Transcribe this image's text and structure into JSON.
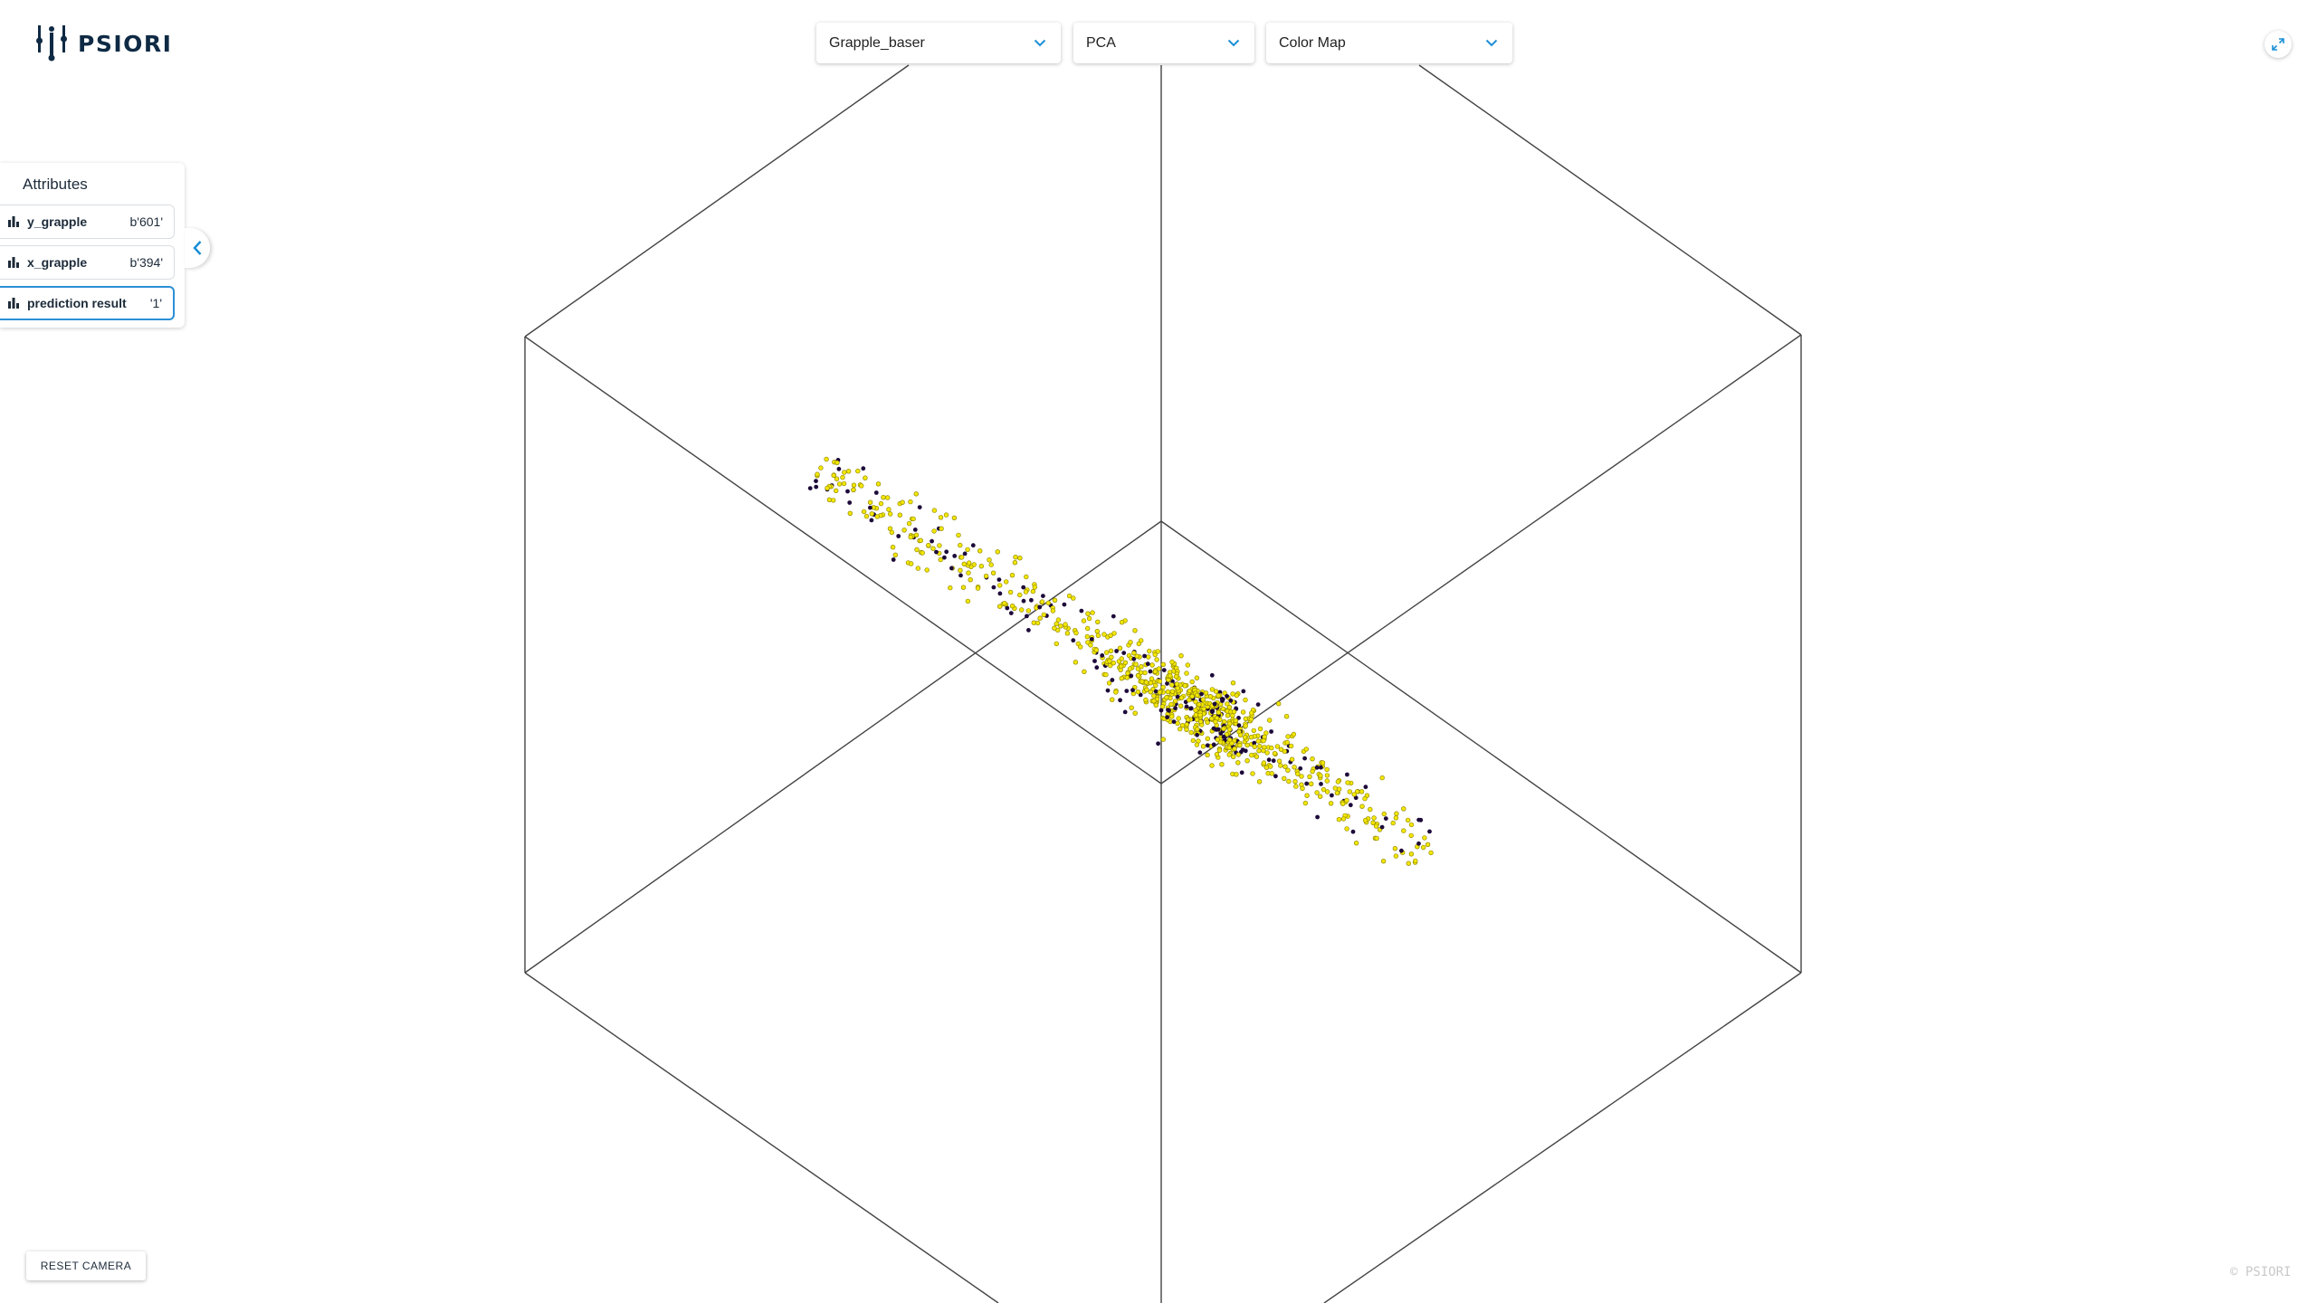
{
  "app": {
    "logo_text": "PSIORI"
  },
  "toolbar": {
    "dataset": "Grapple_baser",
    "method": "PCA",
    "colormap": "Color Map"
  },
  "attributes": {
    "title": "Attributes",
    "items": [
      {
        "label": "y_grapple",
        "value": "b'601'"
      },
      {
        "label": "x_grapple",
        "value": "b'394'"
      },
      {
        "label": "prediction result",
        "value": "'1'"
      }
    ]
  },
  "controls": {
    "reset_camera": "RESET CAMERA"
  },
  "footer": {
    "copyright": "© PSIORI"
  },
  "colors": {
    "accent": "#1a8fd6",
    "point_positive": "#f2e600",
    "point_negative": "#1d0a3a",
    "box_lines": "#444444"
  },
  "icons": {
    "logo": "psiori-tuning-fork-logo",
    "dropdown": "chevron-down-icon",
    "fullscreen": "expand-arrows-icon",
    "attribute": "bar-chart-icon",
    "collapse": "chevron-left-icon"
  }
}
